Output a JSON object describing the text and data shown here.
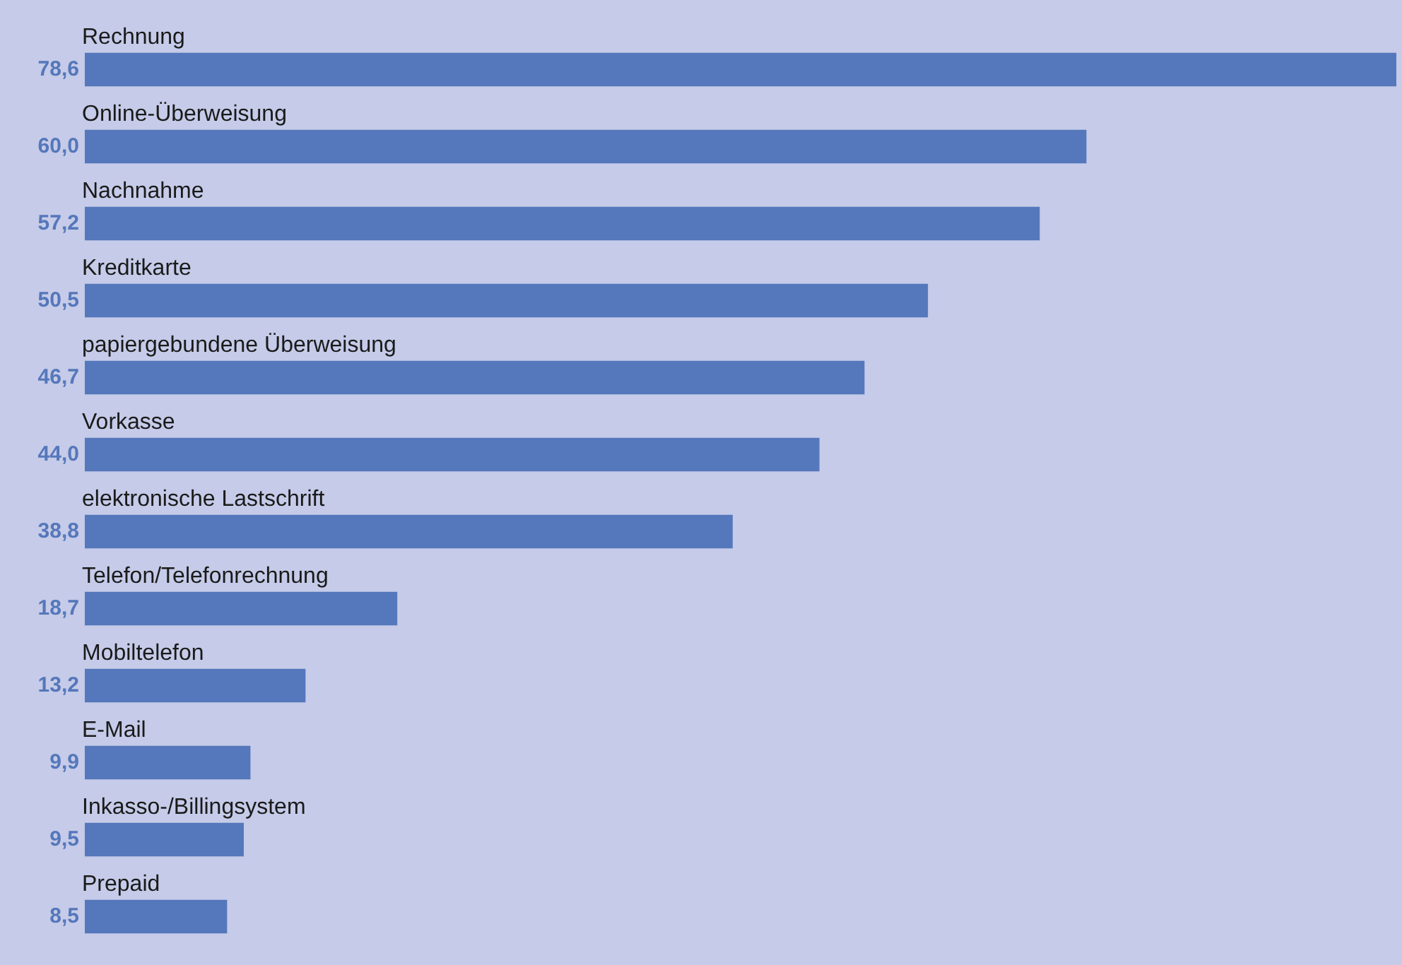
{
  "chart_data": {
    "type": "bar",
    "orientation": "horizontal",
    "categories": [
      "Rechnung",
      "Online-Überweisung",
      "Nachnahme",
      "Kreditkarte",
      "papiergebundene Überweisung",
      "Vorkasse",
      "elektronische Lastschrift",
      "Telefon/Telefonrechnung",
      "Mobiltelefon",
      "E-Mail",
      "Inkasso-/Billingsystem",
      "Prepaid"
    ],
    "values": [
      78.6,
      60.0,
      57.2,
      50.5,
      46.7,
      44.0,
      38.8,
      18.7,
      13.2,
      9.9,
      9.5,
      8.5
    ],
    "value_labels": [
      "78,6",
      "60,0",
      "57,2",
      "50,5",
      "46,7",
      "44,0",
      "38,8",
      "18,7",
      "13,2",
      "9,9",
      "9,5",
      "8,5"
    ],
    "color": "#5577bb",
    "xlim": [
      0,
      78.6
    ]
  }
}
